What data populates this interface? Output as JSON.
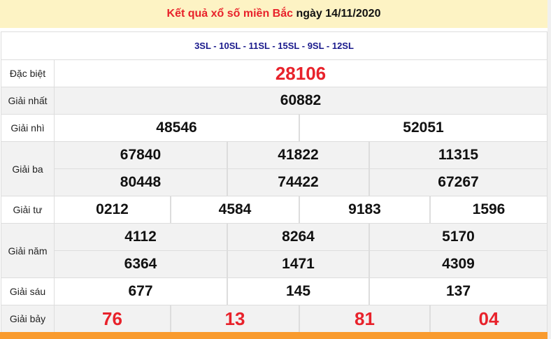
{
  "title": {
    "red": "Kết quả xổ số miền Bắc",
    "date": "ngày 14/11/2020"
  },
  "sl": "3SL - 10SL - 11SL - 15SL - 9SL - 12SL",
  "prizes": [
    {
      "label": "Đặc biệt",
      "numbers": [
        "28106"
      ]
    },
    {
      "label": "Giải nhất",
      "numbers": [
        "60882"
      ]
    },
    {
      "label": "Giải nhì",
      "numbers": [
        "48546",
        "52051"
      ]
    },
    {
      "label": "Giải ba",
      "numbers": [
        "67840",
        "41822",
        "11315",
        "80448",
        "74422",
        "67267"
      ]
    },
    {
      "label": "Giải tư",
      "numbers": [
        "0212",
        "4584",
        "9183",
        "1596"
      ]
    },
    {
      "label": "Giải năm",
      "numbers": [
        "4112",
        "8264",
        "5170",
        "6364",
        "1471",
        "4309"
      ]
    },
    {
      "label": "Giải sáu",
      "numbers": [
        "677",
        "145",
        "137"
      ]
    },
    {
      "label": "Giải bảy",
      "numbers": [
        "76",
        "13",
        "81",
        "04"
      ]
    }
  ],
  "colors": {
    "header_bg": "#fdf3c4",
    "accent_red": "#e8222b",
    "sl_blue": "#1a1a8c",
    "footer_orange": "#f99b2e"
  }
}
